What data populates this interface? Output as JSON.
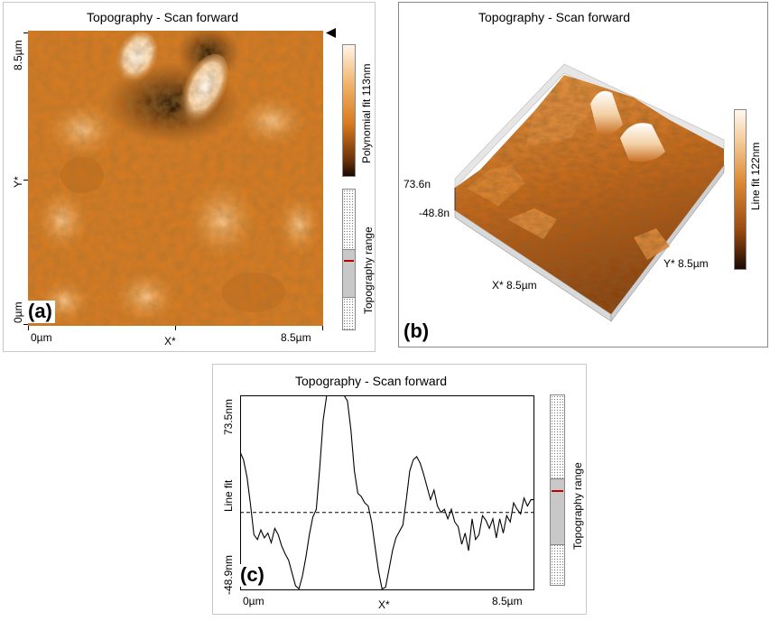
{
  "figure": {
    "panel_a": {
      "letter": "(a)",
      "title": "Topography - Scan forward",
      "y_top": "8.5µm",
      "y_bottom": "0µm",
      "y_axis": "Y*",
      "x_left": "0µm",
      "x_right": "8.5µm",
      "x_axis": "X*",
      "colorbar_label": "Polynomial fit 113nm",
      "range_label": "Topography range",
      "colors": {
        "dark": "#2b1305",
        "mid": "#d97b1c",
        "light": "#fff1de"
      }
    },
    "panel_b": {
      "letter": "(b)",
      "title": "Topography - Scan forward",
      "z_top": "73.6n",
      "z_bottom": "-48.8n",
      "x_axis": "X* 8.5µm",
      "y_axis": "Y* 8.5µm",
      "colorbar_label": "Line fit 122nm"
    },
    "panel_c": {
      "letter": "(c)",
      "title": "Topography - Scan forward",
      "y_top": "73.5nm",
      "y_mid": "Line fit",
      "y_bottom": "-48.9nm",
      "x_left": "0µm",
      "x_axis": "X*",
      "x_right": "8.5µm",
      "range_label": "Topography range"
    }
  },
  "chart_data": {
    "type": "line",
    "title": "Topography - Scan forward",
    "xlabel": "X*",
    "ylabel": "Line fit",
    "xlim": [
      0,
      8.5
    ],
    "ylim": [
      -48.9,
      73.5
    ],
    "reference_line_y": 0,
    "x": [
      0,
      0.1,
      0.2,
      0.3,
      0.4,
      0.5,
      0.6,
      0.7,
      0.8,
      0.9,
      1.0,
      1.1,
      1.2,
      1.3,
      1.4,
      1.5,
      1.6,
      1.7,
      1.8,
      1.9,
      2.0,
      2.1,
      2.2,
      2.3,
      2.4,
      2.5,
      2.6,
      2.7,
      2.8,
      2.9,
      3.0,
      3.1,
      3.2,
      3.3,
      3.4,
      3.5,
      3.6,
      3.7,
      3.8,
      3.9,
      4.0,
      4.1,
      4.2,
      4.3,
      4.4,
      4.5,
      4.6,
      4.7,
      4.8,
      4.9,
      5.0,
      5.1,
      5.2,
      5.3,
      5.4,
      5.5,
      5.6,
      5.7,
      5.8,
      5.9,
      6.0,
      6.1,
      6.2,
      6.3,
      6.4,
      6.5,
      6.6,
      6.7,
      6.8,
      6.9,
      7.0,
      7.1,
      7.2,
      7.3,
      7.4,
      7.5,
      7.6,
      7.7,
      7.8,
      7.9,
      8.0,
      8.1,
      8.2,
      8.3,
      8.4,
      8.5
    ],
    "series": [
      {
        "values": [
          38,
          33,
          22,
          5,
          -14,
          -17,
          -11,
          -16,
          -13,
          -19,
          -10,
          -14,
          -21,
          -26,
          -30,
          -38,
          -46,
          -48,
          -40,
          -28,
          -14,
          -3,
          2,
          28,
          58,
          73.5,
          73.5,
          73.5,
          73.5,
          73.5,
          73.5,
          70,
          52,
          26,
          12,
          10,
          6,
          4,
          -6,
          -22,
          -37,
          -48,
          -47,
          -36,
          -24,
          -16,
          -12,
          -8,
          8,
          26,
          33,
          35,
          31,
          24,
          16,
          8,
          14,
          4,
          0,
          2,
          -4,
          2,
          -6,
          -9,
          -20,
          -13,
          -24,
          -4,
          -17,
          -14,
          -2,
          -5,
          -10,
          -4,
          -16,
          -4,
          -13,
          -2,
          -6,
          6,
          2,
          -1,
          9,
          4,
          8,
          8
        ]
      }
    ]
  }
}
